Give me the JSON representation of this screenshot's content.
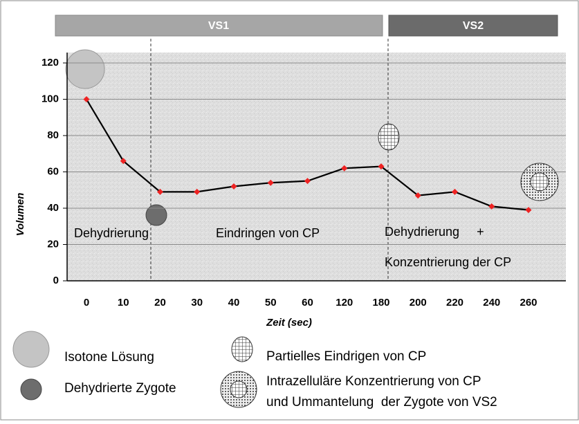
{
  "chart_data": {
    "type": "line",
    "bands": [
      "VS1",
      "VS2"
    ],
    "x_label": "Zeit (sec)",
    "y_label": "Volumen",
    "categories": [
      "0",
      "10",
      "20",
      "30",
      "40",
      "50",
      "60",
      "120",
      "180",
      "200",
      "220",
      "240",
      "260"
    ],
    "values": [
      100,
      66,
      49,
      49,
      52,
      54,
      55,
      62,
      63,
      47,
      49,
      41,
      39
    ],
    "color": "#000000",
    "marker_color": "#ee2222",
    "ylim": [
      0,
      120
    ],
    "yticks": [
      0,
      20,
      40,
      60,
      80,
      100,
      120
    ],
    "grid": true,
    "annotations": [
      "Dehydrierung",
      "Eindringen von CP",
      "Dehydrierung     +",
      "Konzentrierung der CP"
    ],
    "icon_legend": [
      [
        "Isotone Lösung"
      ],
      [
        "Dehydrierte Zygote"
      ],
      [
        "Partielles Eindrigen von CP"
      ],
      [
        "Intrazelluläre Konzentrierung von CP",
        "und Ummantelung  der Zygote von VS2"
      ]
    ]
  }
}
